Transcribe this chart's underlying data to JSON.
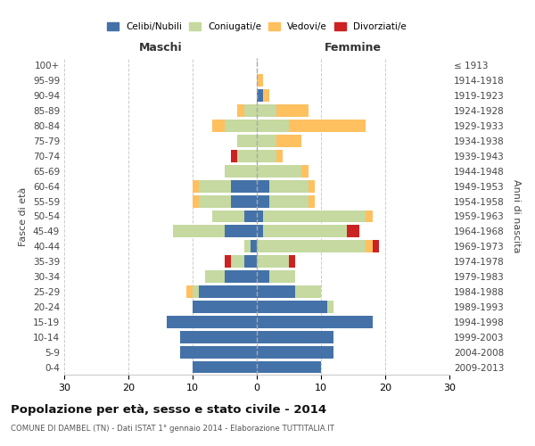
{
  "age_groups": [
    "0-4",
    "5-9",
    "10-14",
    "15-19",
    "20-24",
    "25-29",
    "30-34",
    "35-39",
    "40-44",
    "45-49",
    "50-54",
    "55-59",
    "60-64",
    "65-69",
    "70-74",
    "75-79",
    "80-84",
    "85-89",
    "90-94",
    "95-99",
    "100+"
  ],
  "birth_years": [
    "2009-2013",
    "2004-2008",
    "1999-2003",
    "1994-1998",
    "1989-1993",
    "1984-1988",
    "1979-1983",
    "1974-1978",
    "1969-1973",
    "1964-1968",
    "1959-1963",
    "1954-1958",
    "1949-1953",
    "1944-1948",
    "1939-1943",
    "1934-1938",
    "1929-1933",
    "1924-1928",
    "1919-1923",
    "1914-1918",
    "≤ 1913"
  ],
  "male": {
    "celibi": [
      10,
      12,
      12,
      14,
      10,
      9,
      5,
      2,
      1,
      5,
      2,
      4,
      4,
      0,
      0,
      0,
      0,
      0,
      0,
      0,
      0
    ],
    "coniugati": [
      0,
      0,
      0,
      0,
      0,
      1,
      3,
      2,
      1,
      8,
      5,
      5,
      5,
      5,
      3,
      3,
      5,
      2,
      0,
      0,
      0
    ],
    "vedovi": [
      0,
      0,
      0,
      0,
      0,
      1,
      0,
      0,
      0,
      0,
      0,
      1,
      1,
      0,
      0,
      0,
      2,
      1,
      0,
      0,
      0
    ],
    "divorziati": [
      0,
      0,
      0,
      0,
      0,
      0,
      0,
      1,
      0,
      0,
      0,
      0,
      0,
      0,
      1,
      0,
      0,
      0,
      0,
      0,
      0
    ]
  },
  "female": {
    "nubili": [
      10,
      12,
      12,
      18,
      11,
      6,
      2,
      0,
      0,
      1,
      1,
      2,
      2,
      0,
      0,
      0,
      0,
      0,
      1,
      0,
      0
    ],
    "coniugate": [
      0,
      0,
      0,
      0,
      1,
      4,
      4,
      5,
      17,
      13,
      16,
      6,
      6,
      7,
      3,
      3,
      5,
      3,
      0,
      0,
      0
    ],
    "vedove": [
      0,
      0,
      0,
      0,
      0,
      0,
      0,
      0,
      1,
      0,
      1,
      1,
      1,
      1,
      1,
      4,
      12,
      5,
      1,
      1,
      0
    ],
    "divorziate": [
      0,
      0,
      0,
      0,
      0,
      0,
      0,
      1,
      1,
      2,
      0,
      0,
      0,
      0,
      0,
      0,
      0,
      0,
      0,
      0,
      0
    ]
  },
  "colors": {
    "celibi": "#4472a8",
    "coniugati": "#c5d9a0",
    "vedovi": "#ffc060",
    "divorziati": "#cc2222"
  },
  "title": "Popolazione per età, sesso e stato civile - 2014",
  "subtitle": "COMUNE DI DAMBEL (TN) - Dati ISTAT 1° gennaio 2014 - Elaborazione TUTTITALIA.IT",
  "xlabel_left": "Maschi",
  "xlabel_right": "Femmine",
  "ylabel_left": "Fasce di età",
  "ylabel_right": "Anni di nascita",
  "xlim": 30,
  "bg_color": "#ffffff",
  "grid_color": "#cccccc"
}
